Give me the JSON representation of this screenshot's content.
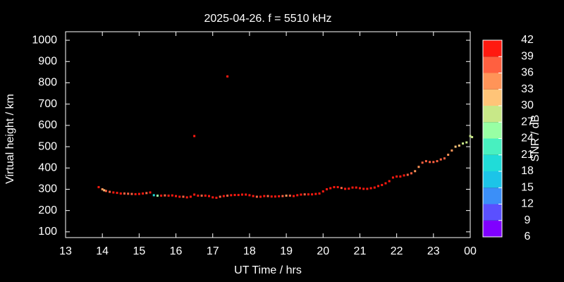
{
  "chart_data": {
    "type": "scatter",
    "title": "2025-04-26. f = 5510 kHz",
    "xlabel": "UT Time / hrs",
    "ylabel": "Virtual height / km",
    "xlim": [
      13,
      24
    ],
    "xticks": [
      13,
      14,
      15,
      16,
      17,
      18,
      19,
      20,
      21,
      22,
      23,
      {
        "value": 24,
        "label": "00"
      }
    ],
    "ylim": [
      73,
      1040
    ],
    "yticks": [
      100,
      200,
      300,
      400,
      500,
      600,
      700,
      800,
      900,
      1000
    ],
    "x": [
      13.9,
      14.0,
      14.05,
      14.1,
      14.2,
      14.3,
      14.4,
      14.5,
      14.6,
      14.7,
      14.8,
      14.9,
      15.0,
      15.1,
      15.2,
      15.3,
      15.4,
      15.5,
      15.6,
      15.7,
      15.8,
      15.9,
      16.0,
      16.1,
      16.2,
      16.3,
      16.4,
      16.5,
      16.5,
      16.6,
      16.7,
      16.8,
      16.9,
      17.0,
      17.1,
      17.2,
      17.3,
      17.4,
      17.4,
      17.5,
      17.6,
      17.7,
      17.8,
      17.9,
      18.0,
      18.1,
      18.2,
      18.3,
      18.4,
      18.5,
      18.6,
      18.7,
      18.8,
      18.9,
      19.0,
      19.1,
      19.2,
      19.3,
      19.4,
      19.5,
      19.6,
      19.7,
      19.8,
      19.9,
      20.0,
      20.1,
      20.2,
      20.3,
      20.4,
      20.5,
      20.6,
      20.7,
      20.8,
      20.9,
      21.0,
      21.1,
      21.2,
      21.3,
      21.4,
      21.5,
      21.6,
      21.7,
      21.8,
      21.9,
      22.0,
      22.1,
      22.2,
      22.3,
      22.4,
      22.5,
      22.6,
      22.7,
      22.8,
      22.9,
      23.0,
      23.1,
      23.2,
      23.3,
      23.4,
      23.5,
      23.6,
      23.7,
      23.8,
      23.9,
      24.0,
      24.05
    ],
    "y": [
      310,
      300,
      295,
      292,
      288,
      285,
      283,
      280,
      280,
      279,
      278,
      277,
      278,
      280,
      282,
      285,
      272,
      270,
      270,
      271,
      270,
      271,
      268,
      265,
      265,
      262,
      265,
      275,
      550,
      270,
      270,
      270,
      268,
      262,
      260,
      265,
      268,
      270,
      830,
      272,
      273,
      273,
      275,
      275,
      272,
      268,
      265,
      265,
      268,
      268,
      266,
      266,
      267,
      268,
      270,
      270,
      268,
      272,
      275,
      276,
      276,
      276,
      278,
      280,
      290,
      300,
      305,
      310,
      310,
      306,
      302,
      303,
      308,
      308,
      305,
      302,
      302,
      305,
      308,
      315,
      320,
      328,
      338,
      355,
      360,
      360,
      365,
      368,
      375,
      385,
      405,
      425,
      432,
      428,
      428,
      432,
      440,
      445,
      462,
      482,
      500,
      505,
      515,
      520,
      550,
      545
    ],
    "snr": [
      40,
      35,
      32,
      38,
      38,
      39,
      39,
      39,
      38,
      38,
      38,
      39,
      39,
      39,
      38,
      39,
      20,
      24,
      39,
      38,
      39,
      39,
      39,
      39,
      38,
      39,
      39,
      39,
      39,
      39,
      38,
      39,
      39,
      39,
      39,
      38,
      39,
      38,
      39,
      39,
      39,
      39,
      39,
      39,
      39,
      39,
      38,
      39,
      39,
      38,
      39,
      39,
      39,
      38,
      35,
      37,
      39,
      39,
      39,
      38,
      39,
      39,
      39,
      39,
      39,
      39,
      39,
      39,
      39,
      38,
      39,
      39,
      39,
      39,
      39,
      39,
      39,
      39,
      39,
      39,
      39,
      39,
      39,
      39,
      39,
      39,
      39,
      37,
      36,
      35,
      34,
      36,
      38,
      37,
      38,
      36,
      36,
      36,
      35,
      33,
      30,
      30,
      28,
      27,
      27,
      28
    ],
    "colorbar": {
      "label": "SNR / dB",
      "clim": [
        6,
        42
      ],
      "ticks": [
        6,
        9,
        12,
        15,
        18,
        21,
        24,
        27,
        30,
        33,
        36,
        39,
        42
      ],
      "colors": [
        "#8000ff",
        "#5a50ff",
        "#3b8ff8",
        "#1cc4e8",
        "#20dcd8",
        "#48f0c0",
        "#98ffa4",
        "#c8e888",
        "#ffc478",
        "#ff9458",
        "#ff6040",
        "#ff1a10"
      ]
    }
  }
}
